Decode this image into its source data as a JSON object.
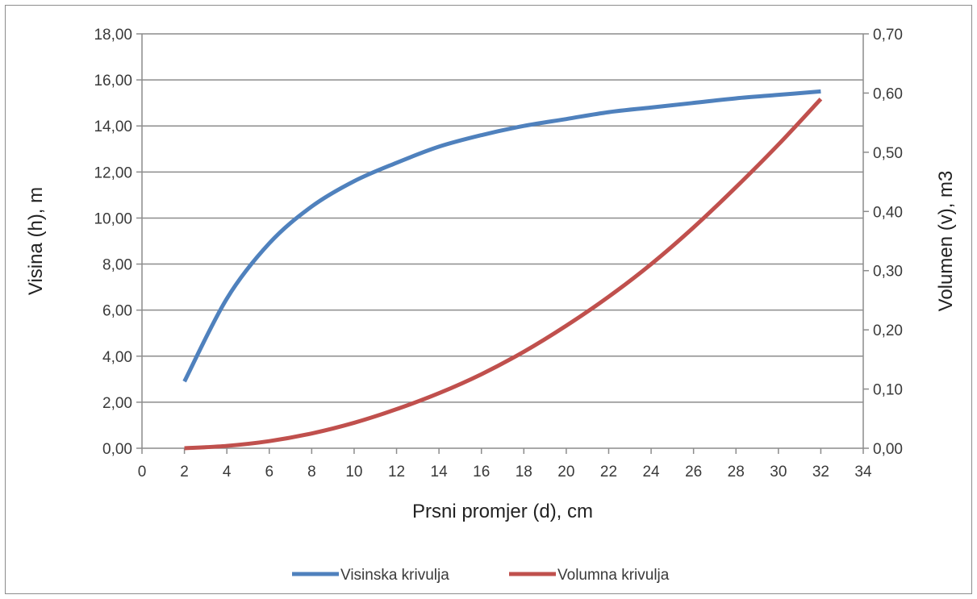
{
  "chart_data": {
    "type": "line",
    "title": "",
    "xlabel": "Prsni promjer (d), cm",
    "ylabel": "Visina (h), m",
    "y2label": "Volumen (v), m3",
    "xlim": [
      0,
      34
    ],
    "ylim": [
      0,
      18
    ],
    "y2lim": [
      0,
      0.7
    ],
    "x_ticks": [
      "0",
      "2",
      "4",
      "6",
      "8",
      "10",
      "12",
      "14",
      "16",
      "18",
      "20",
      "22",
      "24",
      "26",
      "28",
      "30",
      "32",
      "34"
    ],
    "y_ticks": [
      "0,00",
      "2,00",
      "4,00",
      "6,00",
      "8,00",
      "10,00",
      "12,00",
      "14,00",
      "16,00",
      "18,00"
    ],
    "y2_ticks": [
      "0,00",
      "0,10",
      "0,20",
      "0,30",
      "0,40",
      "0,50",
      "0,60",
      "0,70"
    ],
    "grid": true,
    "legend_position": "bottom",
    "x": [
      2,
      4,
      6,
      8,
      10,
      12,
      14,
      16,
      18,
      20,
      22,
      24,
      26,
      28,
      30,
      32
    ],
    "series": [
      {
        "name": "Visinska krivulja",
        "axis": "left",
        "color": "#4f81bd",
        "values": [
          2.9,
          6.5,
          8.9,
          10.5,
          11.6,
          12.4,
          13.1,
          13.6,
          14.0,
          14.3,
          14.6,
          14.8,
          15.0,
          15.2,
          15.35,
          15.5
        ]
      },
      {
        "name": "Volumna krivulja",
        "axis": "right",
        "color": "#c0504d",
        "values": [
          0.0,
          0.004,
          0.012,
          0.025,
          0.043,
          0.066,
          0.093,
          0.125,
          0.163,
          0.207,
          0.256,
          0.311,
          0.373,
          0.441,
          0.513,
          0.59
        ]
      }
    ]
  }
}
